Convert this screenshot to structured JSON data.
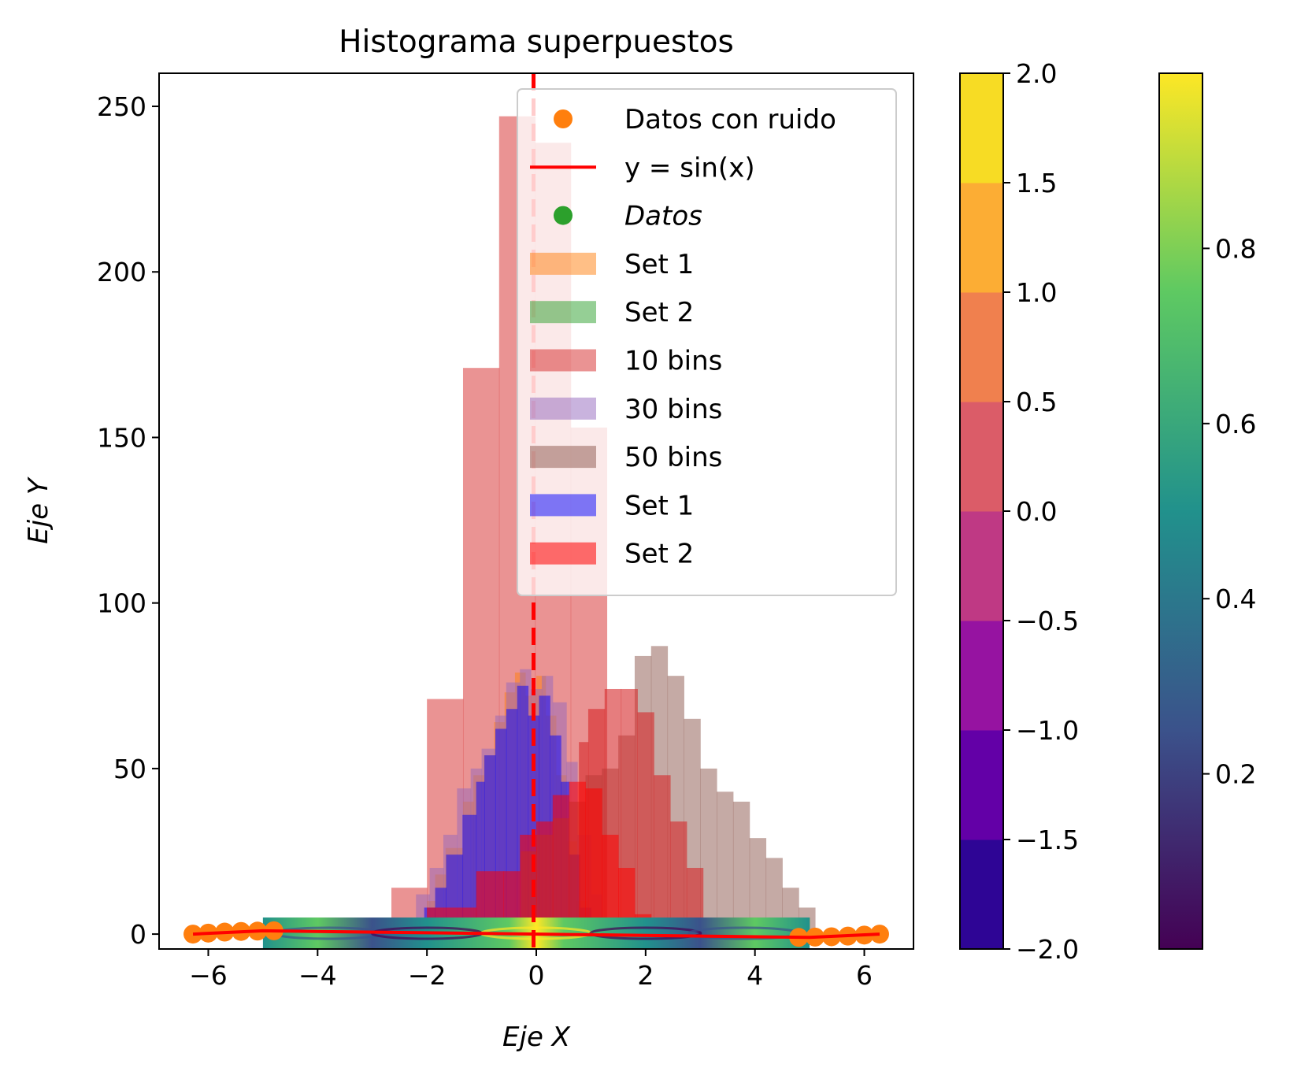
{
  "chart_data": {
    "type": "bar",
    "title": "Histograma superpuestos",
    "xlabel": "Eje X",
    "ylabel": "Eje Y",
    "xlim": [
      -6.9,
      6.9
    ],
    "ylim": [
      -4.5,
      260
    ],
    "x_ticks": [
      -6,
      -4,
      -2,
      0,
      2,
      4,
      6
    ],
    "x_tick_labels": [
      "−6",
      "−4",
      "−2",
      "0",
      "2",
      "4",
      "6"
    ],
    "y_ticks": [
      0,
      50,
      100,
      150,
      200,
      250
    ],
    "y_tick_labels": [
      "0",
      "50",
      "100",
      "150",
      "200",
      "250"
    ],
    "histograms": [
      {
        "name": "10 bins",
        "color": "#d62728",
        "alpha": 0.5,
        "edges": [
          -2.65,
          -2.0,
          -1.34,
          -0.68,
          -0.02,
          0.63,
          1.29
        ],
        "values": [
          14,
          71,
          171,
          247,
          239,
          153
        ]
      },
      {
        "name": "Set 1",
        "color": "#ff7f0e",
        "alpha": 0.5,
        "edges": [
          -2.0,
          -1.85,
          -1.66,
          -1.34,
          -1.15,
          -0.96,
          -0.77,
          -0.58,
          -0.39,
          -0.2,
          0.0,
          0.17,
          0.36,
          0.55,
          0.74,
          0.93
        ],
        "values": [
          10,
          18,
          26,
          40,
          48,
          54,
          64,
          73,
          79,
          72,
          78,
          66,
          48,
          28,
          10
        ]
      },
      {
        "name": "30 bins",
        "color": "#9467bd",
        "alpha": 0.5,
        "edges": [
          -2.2,
          -1.95,
          -1.7,
          -1.45,
          -1.2,
          -1.0,
          -0.75,
          -0.55,
          -0.3,
          -0.1,
          0.1,
          0.3,
          0.55,
          0.75,
          1.0,
          1.2
        ],
        "values": [
          12,
          20,
          30,
          44,
          50,
          56,
          66,
          76,
          80,
          74,
          78,
          70,
          52,
          30,
          12
        ]
      },
      {
        "name": "Set 1",
        "color": "#0000ff",
        "alpha": 0.5,
        "edges": [
          -2.05,
          -1.85,
          -1.65,
          -1.35,
          -1.1,
          -0.95,
          -0.75,
          -0.55,
          -0.35,
          -0.15,
          0.05,
          0.25,
          0.45,
          0.6,
          0.8,
          1.0
        ],
        "values": [
          8,
          14,
          24,
          36,
          46,
          54,
          62,
          68,
          75,
          66,
          72,
          60,
          46,
          24,
          8
        ]
      },
      {
        "name": "50 bins",
        "color": "#8c564b",
        "alpha": 0.5,
        "edges": [
          -0.28,
          0.0,
          0.3,
          0.6,
          0.9,
          1.2,
          1.5,
          1.8,
          2.1,
          2.4,
          2.7,
          3.0,
          3.3,
          3.6,
          3.9,
          4.2,
          4.5,
          4.8,
          5.1
        ],
        "values": [
          25,
          30,
          35,
          40,
          48,
          50,
          60,
          84,
          87,
          78,
          65,
          50,
          43,
          40,
          29,
          23,
          14,
          8
        ]
      },
      {
        "name": "Set 2",
        "color": "#d62728",
        "alpha": 0.6,
        "edges": [
          0.78,
          0.95,
          1.25,
          1.55,
          1.85,
          2.15,
          2.45,
          2.75,
          3.05
        ],
        "values": [
          58,
          68,
          74,
          74,
          67,
          48,
          34,
          20
        ]
      },
      {
        "name": "Set 2",
        "color": "#ff0000",
        "alpha": 0.55,
        "edges": [
          -2.0,
          -1.1,
          -0.6,
          -0.3,
          0.0,
          0.3,
          0.6,
          0.9,
          1.2,
          1.5,
          1.8,
          2.1
        ],
        "values": [
          8,
          19,
          19,
          30,
          34,
          42,
          46,
          44,
          30,
          20,
          6
        ]
      },
      {
        "name": "Set 2",
        "color": "#2ca02c",
        "alpha": 0.5,
        "edges": [
          -5.0,
          5.0
        ],
        "values": [
          5
        ]
      }
    ],
    "series": [
      {
        "name": "Datos con ruido",
        "type": "scatter",
        "color": "#ff7f0e",
        "x": [
          -6.28,
          -6.0,
          -5.7,
          -5.4,
          -5.1,
          -4.8,
          4.8,
          5.1,
          5.4,
          5.7,
          6.0,
          6.28
        ],
        "y": [
          0,
          0.3,
          0.6,
          0.8,
          0.9,
          1.0,
          -1.0,
          -0.9,
          -0.8,
          -0.6,
          -0.3,
          0
        ]
      },
      {
        "name": "y = sin(x)",
        "type": "line",
        "color": "#ff0000",
        "x": [
          -6.28,
          -5.0,
          5.0,
          6.28
        ],
        "y": [
          0,
          1.0,
          -1.0,
          0
        ]
      },
      {
        "name": "Datos",
        "type": "scatter",
        "color": "#2ca02c",
        "x": [],
        "y": []
      }
    ],
    "vline": {
      "x": -0.05,
      "color": "#ff0000",
      "style": "dashed"
    },
    "contour_band": {
      "x_range": [
        -5,
        5
      ],
      "y_range": [
        -4.5,
        5
      ]
    },
    "legend": {
      "location": "upper right",
      "entries": [
        {
          "label": "Datos con ruido",
          "kind": "marker",
          "color": "#ff7f0e",
          "alpha": 1,
          "italic": false
        },
        {
          "label": "y = sin(x)",
          "kind": "line",
          "color": "#ff0000",
          "alpha": 1,
          "italic": false
        },
        {
          "label": "Datos",
          "kind": "marker",
          "color": "#2ca02c",
          "alpha": 1,
          "italic": true
        },
        {
          "label": "Set 1",
          "kind": "patch",
          "color": "#ff7f0e",
          "alpha": 0.5,
          "italic": false
        },
        {
          "label": "Set 2",
          "kind": "patch",
          "color": "#2ca02c",
          "alpha": 0.5,
          "italic": false
        },
        {
          "label": "10 bins",
          "kind": "patch",
          "color": "#d62728",
          "alpha": 0.5,
          "italic": false
        },
        {
          "label": "30 bins",
          "kind": "patch",
          "color": "#9467bd",
          "alpha": 0.5,
          "italic": false
        },
        {
          "label": "50 bins",
          "kind": "patch",
          "color": "#8c564b",
          "alpha": 0.5,
          "italic": false
        },
        {
          "label": "Set 1",
          "kind": "patch",
          "color": "#0000ff",
          "alpha": 0.5,
          "italic": false
        },
        {
          "label": "Set 2",
          "kind": "patch",
          "color": "#ff0000",
          "alpha": 0.55,
          "italic": false
        }
      ]
    },
    "colorbars": [
      {
        "cmap": "plasma",
        "range": [
          -2.0,
          2.0
        ],
        "levels": [
          -2.0,
          -1.5,
          -1.0,
          -0.5,
          0.0,
          0.5,
          1.0,
          1.5,
          2.0
        ],
        "colors": [
          "#2e0595",
          "#6300a7",
          "#9613a1",
          "#bf3984",
          "#db5c68",
          "#f0804e",
          "#fcad34",
          "#f7dc24"
        ],
        "tick_labels": [
          "−2.0",
          "−1.5",
          "−1.0",
          "−0.5",
          "0.0",
          "0.5",
          "1.0",
          "1.5",
          "2.0"
        ]
      },
      {
        "cmap": "viridis",
        "range": [
          0.0,
          1.0
        ],
        "gradient": [
          "#440154",
          "#3b528b",
          "#21918c",
          "#5ec962",
          "#fde725"
        ],
        "ticks": [
          0.2,
          0.4,
          0.6,
          0.8
        ],
        "tick_labels": [
          "0.2",
          "0.4",
          "0.6",
          "0.8"
        ]
      }
    ]
  }
}
